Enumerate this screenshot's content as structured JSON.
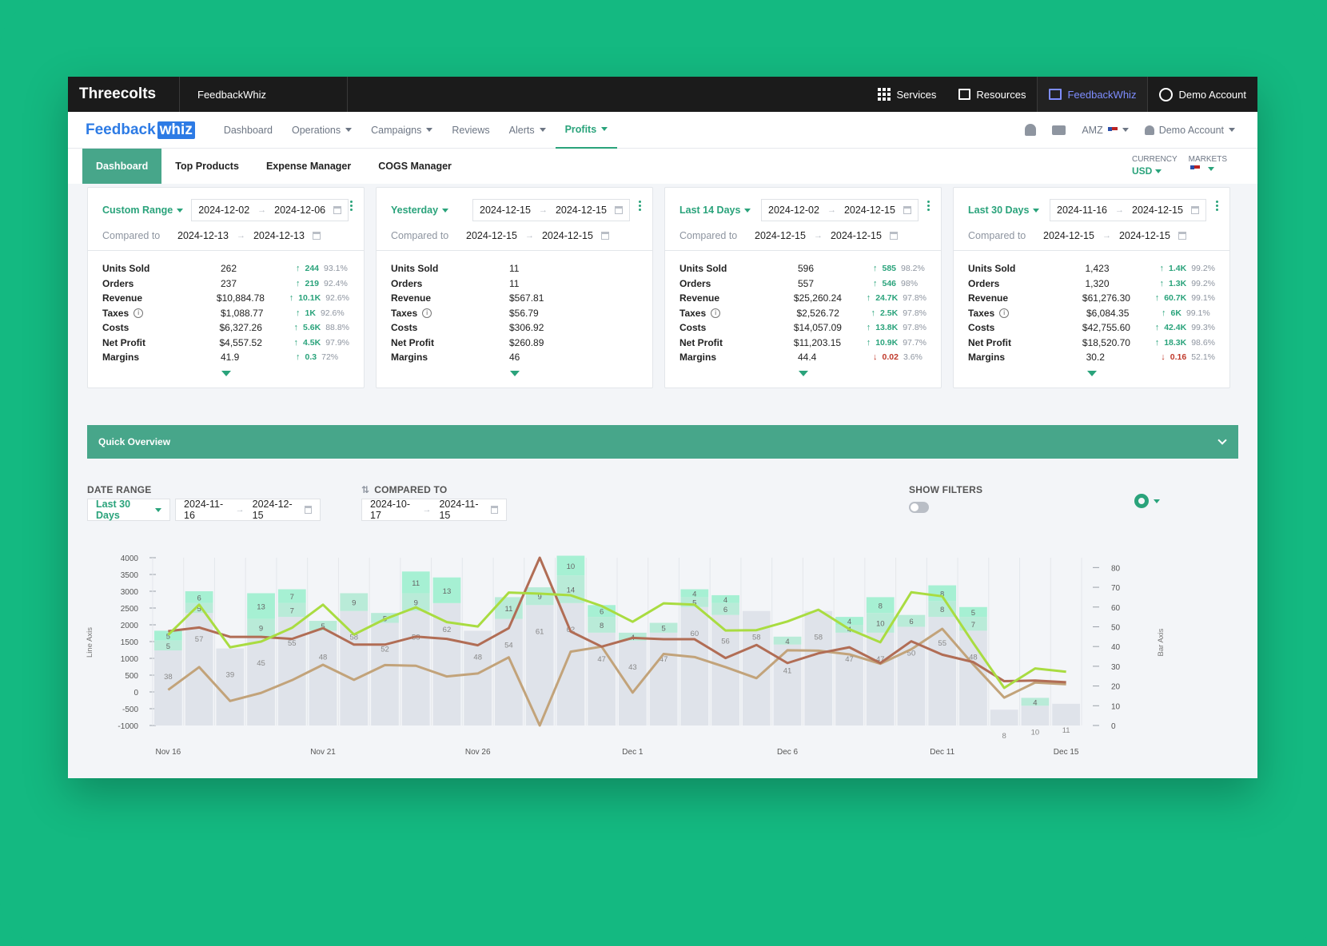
{
  "topbar": {
    "brand": "Threecolts",
    "app": "FeedbackWhiz",
    "services": "Services",
    "resources": "Resources",
    "feedbackwhiz": "FeedbackWhiz",
    "account": "Demo Account"
  },
  "nav": {
    "logo_a": "Feedback",
    "logo_b": "whiz",
    "items": [
      "Dashboard",
      "Operations",
      "Campaigns",
      "Reviews",
      "Alerts",
      "Profits"
    ],
    "marketplace": "AMZ",
    "user": "Demo Account"
  },
  "tabs": {
    "items": [
      "Dashboard",
      "Top Products",
      "Expense Manager",
      "COGS Manager"
    ],
    "currency_label": "CURRENCY",
    "currency_value": "USD",
    "markets_label": "MARKETS"
  },
  "cards": [
    {
      "range": "Custom Range",
      "from": "2024-12-02",
      "to": "2024-12-06",
      "compared_label": "Compared to",
      "cmp_from": "2024-12-13",
      "cmp_to": "2024-12-13",
      "metrics": [
        {
          "name": "Units Sold",
          "value": "262",
          "chg": "244",
          "pct": "93.1%",
          "dir": "up"
        },
        {
          "name": "Orders",
          "value": "237",
          "chg": "219",
          "pct": "92.4%",
          "dir": "up"
        },
        {
          "name": "Revenue",
          "value": "$10,884.78",
          "chg": "10.1K",
          "pct": "92.6%",
          "dir": "up"
        },
        {
          "name": "Taxes",
          "value": "$1,088.77",
          "chg": "1K",
          "pct": "92.6%",
          "dir": "up"
        },
        {
          "name": "Costs",
          "value": "$6,327.26",
          "chg": "5.6K",
          "pct": "88.8%",
          "dir": "up"
        },
        {
          "name": "Net Profit",
          "value": "$4,557.52",
          "chg": "4.5K",
          "pct": "97.9%",
          "dir": "up"
        },
        {
          "name": "Margins",
          "value": "41.9",
          "chg": "0.3",
          "pct": "72%",
          "dir": "up"
        }
      ]
    },
    {
      "range": "Yesterday",
      "from": "2024-12-15",
      "to": "2024-12-15",
      "compared_label": "Compared to",
      "cmp_from": "2024-12-15",
      "cmp_to": "2024-12-15",
      "metrics": [
        {
          "name": "Units Sold",
          "value": "11",
          "chg": "",
          "pct": "",
          "dir": ""
        },
        {
          "name": "Orders",
          "value": "11",
          "chg": "",
          "pct": "",
          "dir": ""
        },
        {
          "name": "Revenue",
          "value": "$567.81",
          "chg": "",
          "pct": "",
          "dir": ""
        },
        {
          "name": "Taxes",
          "value": "$56.79",
          "chg": "",
          "pct": "",
          "dir": ""
        },
        {
          "name": "Costs",
          "value": "$306.92",
          "chg": "",
          "pct": "",
          "dir": ""
        },
        {
          "name": "Net Profit",
          "value": "$260.89",
          "chg": "",
          "pct": "",
          "dir": ""
        },
        {
          "name": "Margins",
          "value": "46",
          "chg": "",
          "pct": "",
          "dir": ""
        }
      ]
    },
    {
      "range": "Last 14 Days",
      "from": "2024-12-02",
      "to": "2024-12-15",
      "compared_label": "Compared to",
      "cmp_from": "2024-12-15",
      "cmp_to": "2024-12-15",
      "metrics": [
        {
          "name": "Units Sold",
          "value": "596",
          "chg": "585",
          "pct": "98.2%",
          "dir": "up"
        },
        {
          "name": "Orders",
          "value": "557",
          "chg": "546",
          "pct": "98%",
          "dir": "up"
        },
        {
          "name": "Revenue",
          "value": "$25,260.24",
          "chg": "24.7K",
          "pct": "97.8%",
          "dir": "up"
        },
        {
          "name": "Taxes",
          "value": "$2,526.72",
          "chg": "2.5K",
          "pct": "97.8%",
          "dir": "up"
        },
        {
          "name": "Costs",
          "value": "$14,057.09",
          "chg": "13.8K",
          "pct": "97.8%",
          "dir": "up"
        },
        {
          "name": "Net Profit",
          "value": "$11,203.15",
          "chg": "10.9K",
          "pct": "97.7%",
          "dir": "up"
        },
        {
          "name": "Margins",
          "value": "44.4",
          "chg": "0.02",
          "pct": "3.6%",
          "dir": "down"
        }
      ]
    },
    {
      "range": "Last 30 Days",
      "from": "2024-11-16",
      "to": "2024-12-15",
      "compared_label": "Compared to",
      "cmp_from": "2024-12-15",
      "cmp_to": "2024-12-15",
      "metrics": [
        {
          "name": "Units Sold",
          "value": "1,423",
          "chg": "1.4K",
          "pct": "99.2%",
          "dir": "up"
        },
        {
          "name": "Orders",
          "value": "1,320",
          "chg": "1.3K",
          "pct": "99.2%",
          "dir": "up"
        },
        {
          "name": "Revenue",
          "value": "$61,276.30",
          "chg": "60.7K",
          "pct": "99.1%",
          "dir": "up"
        },
        {
          "name": "Taxes",
          "value": "$6,084.35",
          "chg": "6K",
          "pct": "99.1%",
          "dir": "up"
        },
        {
          "name": "Costs",
          "value": "$42,755.60",
          "chg": "42.4K",
          "pct": "99.3%",
          "dir": "up"
        },
        {
          "name": "Net Profit",
          "value": "$18,520.70",
          "chg": "18.3K",
          "pct": "98.6%",
          "dir": "up"
        },
        {
          "name": "Margins",
          "value": "30.2",
          "chg": "0.16",
          "pct": "52.1%",
          "dir": "down"
        }
      ]
    }
  ],
  "quick_overview": {
    "title": "Quick Overview",
    "date_range_label": "DATE RANGE",
    "date_range_value": "Last 30 Days",
    "from": "2024-11-16",
    "to": "2024-12-15",
    "compared_label": "COMPARED TO",
    "cmp_from": "2024-10-17",
    "cmp_to": "2024-11-15",
    "show_filters_label": "SHOW FILTERS"
  },
  "chart_data": {
    "type": "bar",
    "x_ticks": [
      "Nov 16",
      "Nov 21",
      "Nov 26",
      "Dec 1",
      "Dec 6",
      "Dec 11",
      "Dec 15"
    ],
    "left_axis_label": "Line Axis",
    "right_axis_label": "Bar Axis",
    "left_ticks": [
      "4000",
      "3500",
      "3000",
      "2500",
      "2000",
      "1500",
      "1000",
      "500",
      "0",
      "-500",
      "-1000"
    ],
    "right_ticks": [
      "80",
      "70",
      "60",
      "50",
      "40",
      "30",
      "20",
      "10",
      "0"
    ],
    "ylim_left": [
      -1000,
      4000
    ],
    "ylim_right": [
      0,
      85
    ],
    "bars_gray": [
      38,
      57,
      39,
      45,
      55,
      48,
      58,
      52,
      58,
      62,
      48,
      54,
      61,
      62,
      47,
      43,
      47,
      60,
      56,
      58,
      41,
      58,
      47,
      47,
      50,
      55,
      48,
      8,
      10,
      11
    ],
    "bars_green_a": [
      5,
      6,
      0,
      13,
      7,
      0,
      0,
      0,
      11,
      13,
      0,
      0,
      0,
      10,
      6,
      0,
      0,
      4,
      4,
      0,
      0,
      0,
      4,
      8,
      0,
      8,
      5,
      0,
      0,
      0
    ],
    "bars_green_b": [
      5,
      5,
      0,
      9,
      7,
      5,
      9,
      5,
      9,
      0,
      0,
      11,
      9,
      14,
      8,
      4,
      5,
      5,
      6,
      0,
      4,
      0,
      4,
      10,
      6,
      8,
      7,
      0,
      4,
      0
    ],
    "line_green": [
      1700,
      2600,
      1330,
      1500,
      1910,
      2600,
      1710,
      2170,
      2520,
      2080,
      1950,
      2960,
      2930,
      2880,
      2560,
      2090,
      2640,
      2600,
      1830,
      1840,
      2100,
      2450,
      1870,
      1480,
      2970,
      2850,
      1460,
      120,
      700,
      600
    ],
    "line_brown": [
      1810,
      1920,
      1640,
      1640,
      1580,
      1900,
      1410,
      1410,
      1650,
      1580,
      1390,
      1900,
      4000,
      1800,
      1350,
      1610,
      1570,
      1570,
      1010,
      1400,
      860,
      1150,
      1330,
      860,
      1510,
      1110,
      890,
      320,
      340,
      290
    ],
    "line_tan": [
      60,
      740,
      -270,
      -30,
      350,
      810,
      360,
      800,
      780,
      460,
      550,
      1030,
      -1000,
      1200,
      1350,
      -20,
      1130,
      1040,
      740,
      410,
      1240,
      1230,
      1120,
      840,
      1270,
      1880,
      820,
      -170,
      280,
      230
    ]
  }
}
